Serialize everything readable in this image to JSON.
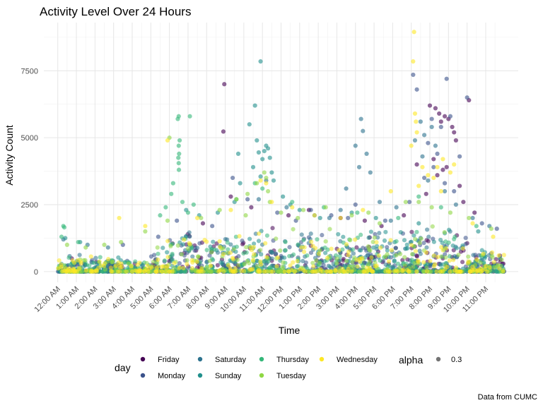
{
  "chart_data": {
    "type": "scatter",
    "title": "Activity Level Over 24 Hours",
    "xlabel": "Time",
    "ylabel": "Activity Count",
    "caption": "Data from CUMC",
    "x_unit": "hours since midnight",
    "xlim": [
      -0.75,
      24.75
    ],
    "ylim": [
      -400,
      9300
    ],
    "x_ticks": [
      {
        "value": 0,
        "label": "12:00 AM"
      },
      {
        "value": 1,
        "label": "1:00 AM"
      },
      {
        "value": 2,
        "label": "2:00 AM"
      },
      {
        "value": 3,
        "label": "3:00 AM"
      },
      {
        "value": 4,
        "label": "4:00 AM"
      },
      {
        "value": 5,
        "label": "5:00 AM"
      },
      {
        "value": 6,
        "label": "6:00 AM"
      },
      {
        "value": 7,
        "label": "7:00 AM"
      },
      {
        "value": 8,
        "label": "8:00 AM"
      },
      {
        "value": 9,
        "label": "9:00 AM"
      },
      {
        "value": 10,
        "label": "10:00 AM"
      },
      {
        "value": 11,
        "label": "11:00 AM"
      },
      {
        "value": 12,
        "label": "12:00 PM"
      },
      {
        "value": 13,
        "label": "1:00 PM"
      },
      {
        "value": 14,
        "label": "2:00 PM"
      },
      {
        "value": 15,
        "label": "3:00 PM"
      },
      {
        "value": 16,
        "label": "4:00 PM"
      },
      {
        "value": 17,
        "label": "5:00 PM"
      },
      {
        "value": 18,
        "label": "6:00 PM"
      },
      {
        "value": 19,
        "label": "7:00 PM"
      },
      {
        "value": 20,
        "label": "8:00 PM"
      },
      {
        "value": 21,
        "label": "9:00 PM"
      },
      {
        "value": 22,
        "label": "10:00 PM"
      },
      {
        "value": 23,
        "label": "11:00 PM"
      }
    ],
    "y_ticks": [
      {
        "value": 0,
        "label": "0"
      },
      {
        "value": 2500,
        "label": "2500"
      },
      {
        "value": 5000,
        "label": "5000"
      },
      {
        "value": 7500,
        "label": "7500"
      }
    ],
    "grid": true,
    "legend_position": "bottom",
    "legend": {
      "title": "day",
      "alpha_title": "alpha",
      "alpha_label": "0.3"
    },
    "series": [
      {
        "name": "Friday",
        "color": "#440154",
        "points": [
          [
            8.95,
            7000
          ],
          [
            8.9,
            5230
          ],
          [
            20.0,
            6200
          ],
          [
            20.3,
            6100
          ],
          [
            20.5,
            5900
          ],
          [
            20.8,
            5800
          ],
          [
            21.0,
            5700
          ],
          [
            21.2,
            5400
          ],
          [
            21.4,
            4900
          ],
          [
            20.2,
            4200
          ],
          [
            21.3,
            5200
          ],
          [
            22.1,
            6400
          ],
          [
            20.6,
            5600
          ],
          [
            19.3,
            4000
          ],
          [
            20.9,
            3900
          ],
          [
            20.4,
            3600
          ],
          [
            21.6,
            3200
          ],
          [
            22.4,
            2200
          ],
          [
            9.3,
            2800
          ],
          [
            10.4,
            2400
          ],
          [
            19.8,
            2900
          ],
          [
            20.7,
            3800
          ],
          [
            21.8,
            2600
          ],
          [
            15.2,
            2000
          ],
          [
            16.5,
            1900
          ],
          [
            17.4,
            1700
          ],
          [
            18.6,
            2100
          ],
          [
            13.5,
            2300
          ],
          [
            12.4,
            2100
          ],
          [
            7.8,
            1800
          ]
        ]
      },
      {
        "name": "Monday",
        "color": "#3b528b",
        "points": [
          [
            20.9,
            7200
          ],
          [
            19.1,
            7350
          ],
          [
            19.3,
            6800
          ],
          [
            22.0,
            6500
          ],
          [
            20.1,
            5700
          ],
          [
            20.6,
            5400
          ],
          [
            21.1,
            5800
          ],
          [
            19.9,
            4800
          ],
          [
            20.4,
            4400
          ],
          [
            21.6,
            4300
          ],
          [
            20.2,
            3900
          ],
          [
            19.7,
            3500
          ],
          [
            20.8,
            3300
          ],
          [
            21.3,
            3000
          ],
          [
            9.4,
            3500
          ],
          [
            10.2,
            2700
          ],
          [
            16.0,
            2500
          ],
          [
            13.6,
            2300
          ],
          [
            11.8,
            2200
          ],
          [
            14.7,
            2100
          ],
          [
            18.9,
            2600
          ],
          [
            22.8,
            1800
          ],
          [
            23.6,
            1600
          ],
          [
            5.4,
            1300
          ],
          [
            6.4,
            1900
          ],
          [
            8.3,
            1700
          ],
          [
            12.8,
            1900
          ],
          [
            15.6,
            2000
          ],
          [
            17.6,
            1900
          ],
          [
            3.5,
            1000
          ]
        ]
      },
      {
        "name": "Saturday",
        "color": "#2c728e",
        "points": [
          [
            16.3,
            5700
          ],
          [
            16.4,
            5250
          ],
          [
            19.5,
            5600
          ],
          [
            19.7,
            5100
          ],
          [
            16.6,
            4400
          ],
          [
            16.2,
            3900
          ],
          [
            20.1,
            5400
          ],
          [
            19.2,
            4900
          ],
          [
            19.6,
            4300
          ],
          [
            20.3,
            4700
          ],
          [
            16.8,
            3700
          ],
          [
            15.5,
            3100
          ],
          [
            16.0,
            4700
          ],
          [
            17.3,
            2600
          ],
          [
            18.2,
            2400
          ],
          [
            15.2,
            2300
          ],
          [
            14.6,
            2000
          ],
          [
            13.8,
            2100
          ],
          [
            19.9,
            3400
          ],
          [
            20.8,
            3000
          ],
          [
            21.4,
            2500
          ],
          [
            22.3,
            2000
          ],
          [
            23.2,
            1700
          ],
          [
            0.3,
            1200
          ],
          [
            1.6,
            1000
          ],
          [
            2.7,
            900
          ],
          [
            10.8,
            2700
          ],
          [
            11.2,
            3400
          ],
          [
            12.3,
            2400
          ],
          [
            17.9,
            1900
          ]
        ]
      },
      {
        "name": "Sunday",
        "color": "#21908c",
        "points": [
          [
            10.9,
            7850
          ],
          [
            10.6,
            6200
          ],
          [
            10.3,
            5500
          ],
          [
            10.7,
            4900
          ],
          [
            11.2,
            4700
          ],
          [
            11.3,
            4600
          ],
          [
            10.8,
            4450
          ],
          [
            11.1,
            4500
          ],
          [
            11.0,
            4200
          ],
          [
            11.4,
            4250
          ],
          [
            10.5,
            3900
          ],
          [
            9.7,
            4400
          ],
          [
            11.5,
            3700
          ],
          [
            10.9,
            3550
          ],
          [
            11.6,
            3400
          ],
          [
            9.8,
            3300
          ],
          [
            12.1,
            2800
          ],
          [
            9.5,
            2600
          ],
          [
            12.5,
            2500
          ],
          [
            13.0,
            2300
          ],
          [
            8.6,
            2200
          ],
          [
            14.1,
            2000
          ],
          [
            0.4,
            1250
          ],
          [
            1.2,
            1100
          ],
          [
            6.9,
            2300
          ],
          [
            7.6,
            2100
          ],
          [
            15.8,
            2200
          ],
          [
            17.1,
            2000
          ],
          [
            19.4,
            1800
          ],
          [
            22.6,
            1500
          ]
        ]
      },
      {
        "name": "Thursday",
        "color": "#35b779",
        "points": [
          [
            6.5,
            5800
          ],
          [
            6.45,
            5700
          ],
          [
            6.55,
            4900
          ],
          [
            6.5,
            4700
          ],
          [
            6.52,
            4400
          ],
          [
            6.48,
            4250
          ],
          [
            6.5,
            4050
          ],
          [
            6.51,
            3800
          ],
          [
            7.1,
            5800
          ],
          [
            6.2,
            3300
          ],
          [
            6.1,
            2900
          ],
          [
            6.7,
            2600
          ],
          [
            7.3,
            2500
          ],
          [
            7.0,
            2200
          ],
          [
            5.8,
            2400
          ],
          [
            5.5,
            2100
          ],
          [
            0.3,
            1700
          ],
          [
            0.35,
            1650
          ],
          [
            0.2,
            1300
          ],
          [
            1.1,
            1100
          ],
          [
            10.6,
            3300
          ],
          [
            11.0,
            3100
          ],
          [
            9.6,
            2700
          ],
          [
            12.6,
            2600
          ],
          [
            14.3,
            2400
          ],
          [
            16.1,
            2200
          ],
          [
            18.3,
            2000
          ],
          [
            19.4,
            2800
          ],
          [
            20.6,
            2400
          ],
          [
            22.5,
            1700
          ]
        ]
      },
      {
        "name": "Tuesday",
        "color": "#8fd744",
        "points": [
          [
            6.0,
            5000
          ],
          [
            11.1,
            3700
          ],
          [
            11.2,
            3500
          ],
          [
            10.7,
            3300
          ],
          [
            11.3,
            3000
          ],
          [
            10.2,
            2900
          ],
          [
            11.4,
            2600
          ],
          [
            9.6,
            2700
          ],
          [
            12.0,
            2200
          ],
          [
            8.7,
            2300
          ],
          [
            13.2,
            2300
          ],
          [
            14.4,
            2400
          ],
          [
            15.8,
            2100
          ],
          [
            16.7,
            2200
          ],
          [
            18.7,
            2600
          ],
          [
            19.4,
            2600
          ],
          [
            20.1,
            2400
          ],
          [
            21.1,
            2200
          ],
          [
            22.1,
            2000
          ],
          [
            23.3,
            1600
          ],
          [
            7.7,
            2000
          ],
          [
            5.9,
            1900
          ],
          [
            4.7,
            1500
          ],
          [
            3.4,
            1100
          ],
          [
            2.5,
            1000
          ],
          [
            1.5,
            900
          ],
          [
            0.5,
            1000
          ],
          [
            17.3,
            1800
          ],
          [
            12.9,
            2000
          ],
          [
            10.1,
            2100
          ]
        ]
      },
      {
        "name": "Wednesday",
        "color": "#fde725",
        "points": [
          [
            19.15,
            8950
          ],
          [
            19.1,
            7850
          ],
          [
            19.2,
            5900
          ],
          [
            19.25,
            5600
          ],
          [
            19.0,
            4700
          ],
          [
            19.3,
            5200
          ],
          [
            19.6,
            3900
          ],
          [
            19.9,
            3600
          ],
          [
            20.4,
            3900
          ],
          [
            19.4,
            3200
          ],
          [
            20.2,
            3500
          ],
          [
            21.3,
            4000
          ],
          [
            20.7,
            4200
          ],
          [
            21.1,
            3700
          ],
          [
            20.6,
            3000
          ],
          [
            5.9,
            4900
          ],
          [
            3.3,
            2000
          ],
          [
            11.2,
            3300
          ],
          [
            10.9,
            3400
          ],
          [
            11.5,
            2600
          ],
          [
            12.6,
            2400
          ],
          [
            17.9,
            3000
          ],
          [
            13.8,
            2100
          ],
          [
            15.2,
            2000
          ],
          [
            16.4,
            2300
          ],
          [
            7.5,
            2000
          ],
          [
            9.3,
            2300
          ],
          [
            22.3,
            1800
          ],
          [
            23.4,
            1300
          ],
          [
            4.7,
            1700
          ]
        ]
      }
    ]
  }
}
